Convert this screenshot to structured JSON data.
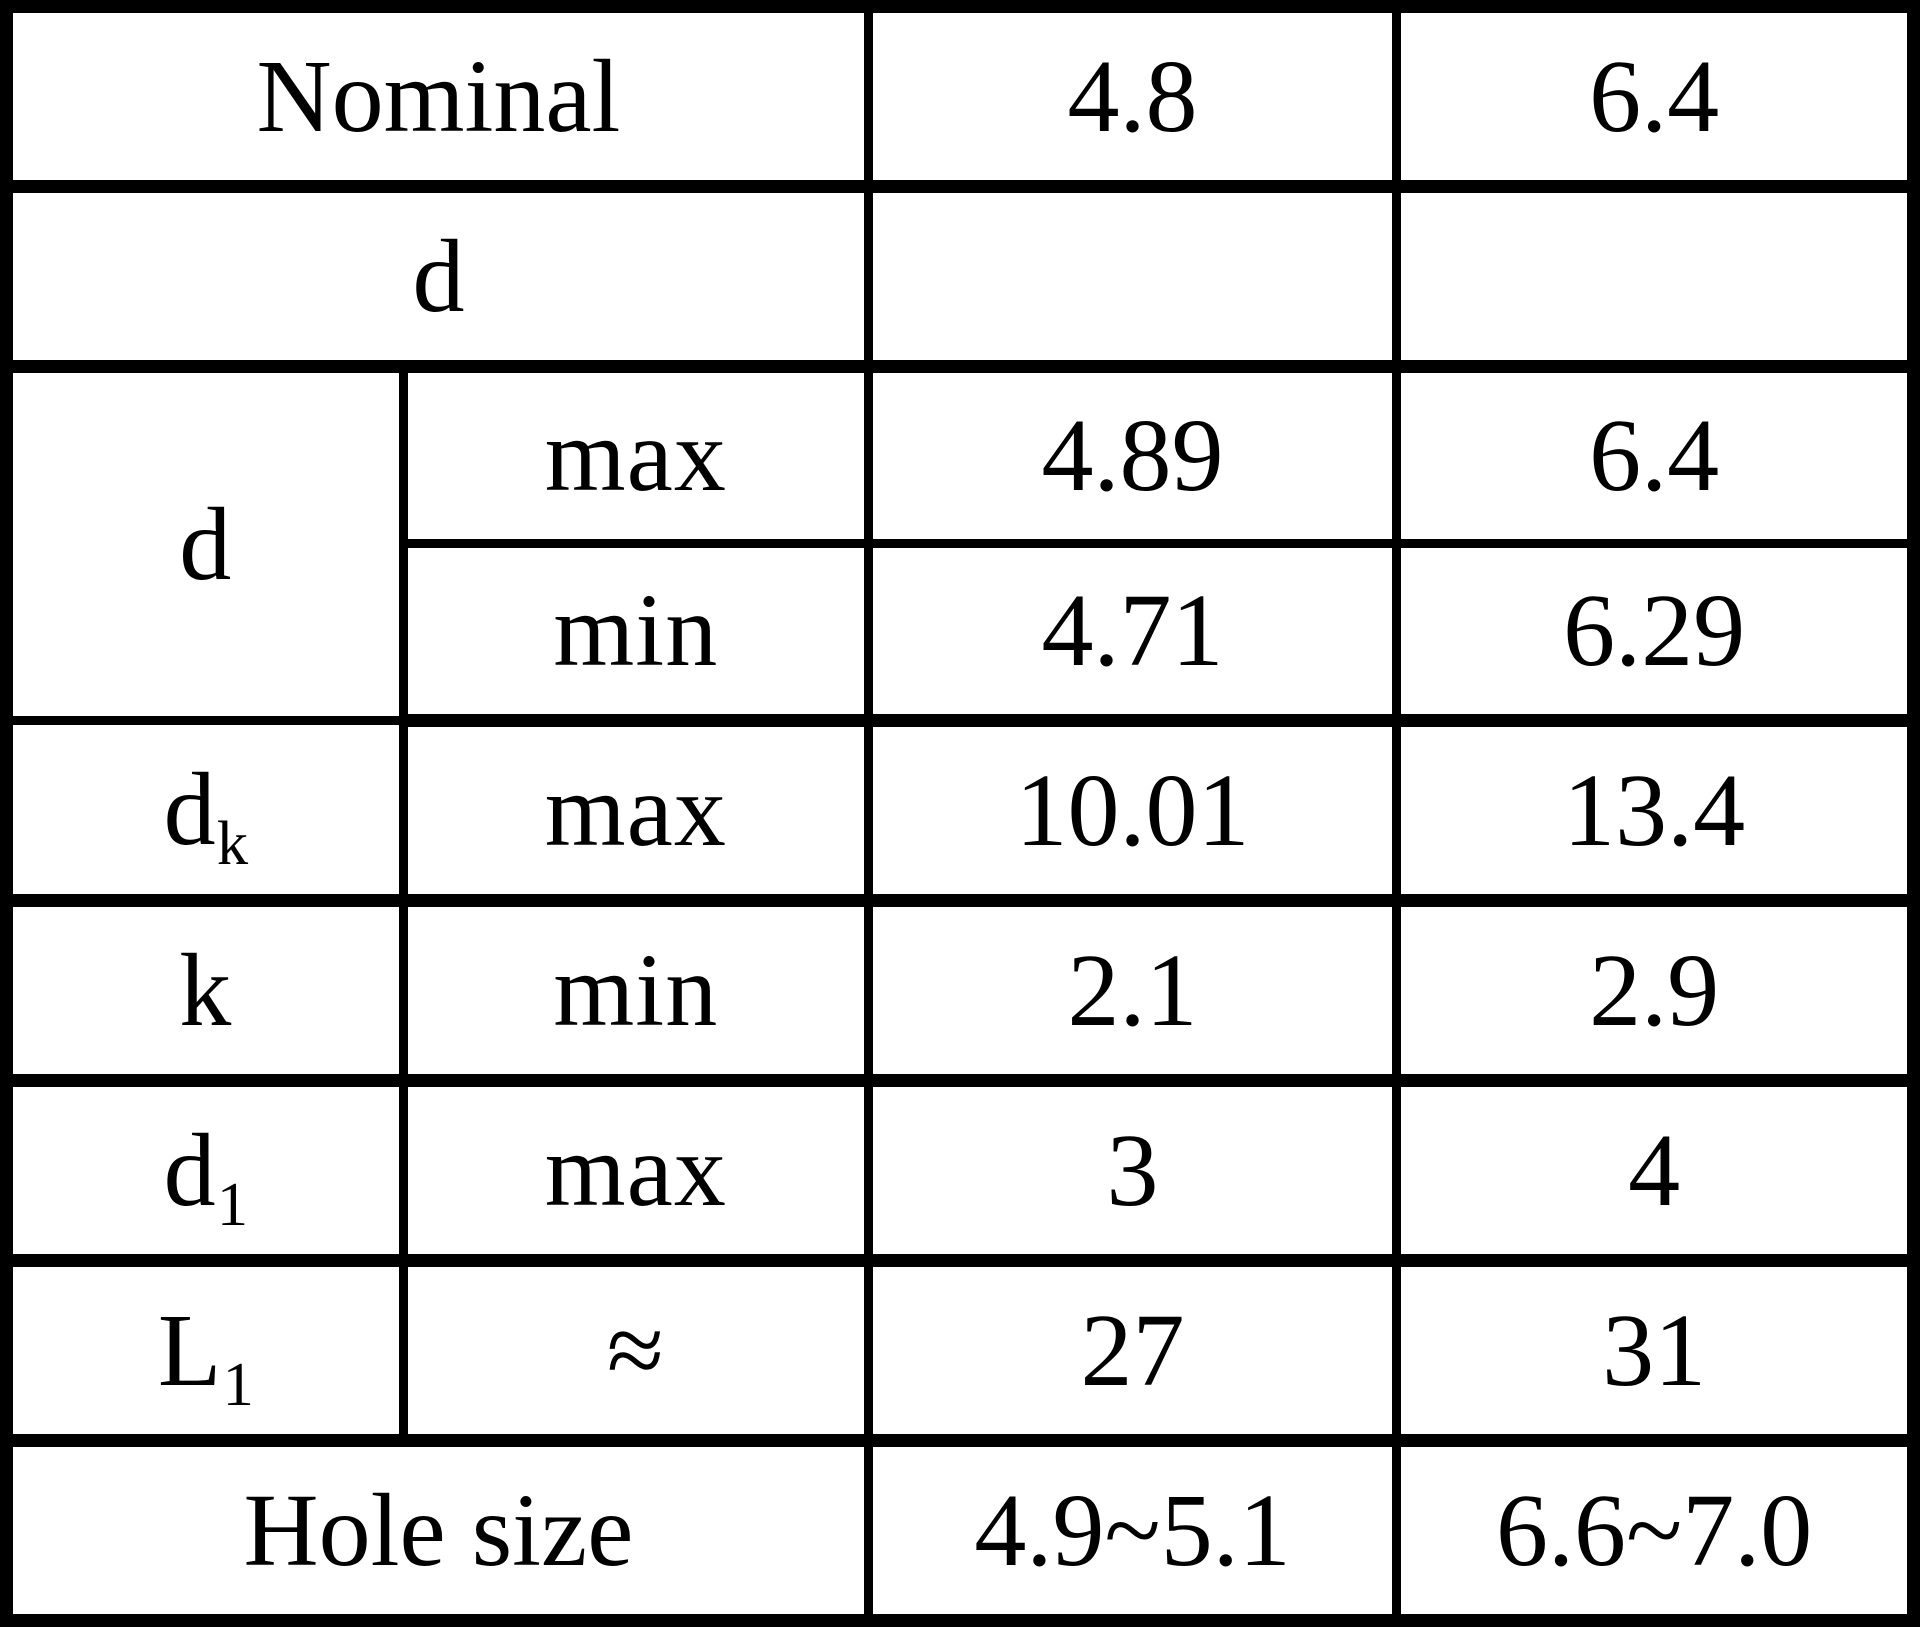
{
  "table": {
    "title_semantic": "rivet-dimension-spec-table",
    "columns": {
      "nominal_label": "Nominal",
      "size_1": "4.8",
      "size_2": "6.4"
    },
    "rows": {
      "nominal": {
        "label": "Nominal",
        "v1": "4.8",
        "v2": "6.4"
      },
      "d_header": {
        "label": "d",
        "sub": "",
        "v1": "",
        "v2": ""
      },
      "d_max": {
        "label": "d",
        "sub": "",
        "qual": "max",
        "v1": "4.89",
        "v2": "6.4"
      },
      "d_min": {
        "qual": "min",
        "v1": "4.71",
        "v2": "6.29"
      },
      "dk_max": {
        "label": "d",
        "sub": "k",
        "qual": "max",
        "v1": "10.01",
        "v2": "13.4"
      },
      "k_min": {
        "label": "k",
        "sub": "",
        "qual": "min",
        "v1": "2.1",
        "v2": "2.9"
      },
      "d1_max": {
        "label": "d",
        "sub": "1",
        "qual": "max",
        "v1": "3",
        "v2": "4"
      },
      "L1_approx": {
        "label": "L",
        "sub": "1",
        "qual": "≈",
        "v1": "27",
        "v2": "31"
      },
      "hole_size": {
        "label": "Hole size",
        "v1": "4.9~5.1",
        "v2": "6.6~7.0"
      }
    },
    "colors": {
      "border": "#000000",
      "text": "#000000",
      "background": "#ffffff"
    }
  }
}
